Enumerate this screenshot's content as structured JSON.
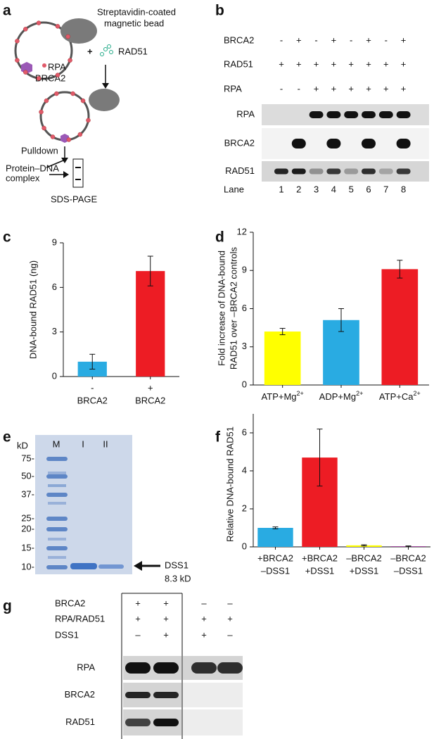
{
  "panel_labels": [
    "a",
    "b",
    "c",
    "d",
    "e",
    "f",
    "g"
  ],
  "schematic": {
    "bead_label": [
      "Streptavidin-coated",
      "magnetic bead"
    ],
    "plus": "+",
    "rad51": "RAD51",
    "rpa": "RPA",
    "brca2": "BRCA2",
    "pulldown": "Pulldown",
    "complex": [
      "Protein–DNA",
      "complex"
    ],
    "gel": "SDS-PAGE"
  },
  "blot_b": {
    "conditions": [
      {
        "name": "BRCA2",
        "signs": [
          "-",
          "+",
          "-",
          "+",
          "-",
          "+",
          "-",
          "+"
        ]
      },
      {
        "name": "RAD51",
        "signs": [
          "+",
          "+",
          "+",
          "+",
          "+",
          "+",
          "+",
          "+"
        ]
      },
      {
        "name": "RPA",
        "signs": [
          "-",
          "-",
          "+",
          "+",
          "+",
          "+",
          "+",
          "+"
        ]
      }
    ],
    "rows": [
      "RPA",
      "BRCA2",
      "RAD51"
    ],
    "lane_title": "Lane",
    "lanes": [
      1,
      2,
      3,
      4,
      5,
      6,
      7,
      8
    ]
  },
  "chart_data": [
    {
      "type": "bar",
      "y_label": "DNA-bound RAD51 (ng)",
      "categories": [
        [
          "-",
          "BRCA2"
        ],
        [
          "+",
          "BRCA2"
        ]
      ],
      "values": [
        1.0,
        7.1
      ],
      "errors": [
        0.5,
        1.0
      ],
      "colors": [
        "#29abe2",
        "#ed1c24"
      ],
      "ylim": [
        0,
        9
      ],
      "yticks": [
        0,
        3,
        6,
        9
      ]
    },
    {
      "type": "bar",
      "y_label": [
        "Fold increase of DNA-bound",
        "RAD51 over –BRCA2 controls"
      ],
      "categories": [
        "ATP+Mg",
        "ADP+Mg",
        "ATP+Ca"
      ],
      "category_superscripts": [
        "2+",
        "2+",
        "2+"
      ],
      "values": [
        4.2,
        5.1,
        9.1
      ],
      "errors": [
        0.25,
        0.9,
        0.7
      ],
      "colors": [
        "#ffff00",
        "#29abe2",
        "#ed1c24"
      ],
      "ylim": [
        0,
        12
      ],
      "yticks": [
        0,
        3,
        6,
        9,
        12
      ]
    },
    {
      "type": "bar",
      "y_label": "Relative DNA-bound RAD51",
      "categories": [
        [
          "+BRCA2",
          "–DSS1"
        ],
        [
          "+BRCA2",
          "+DSS1"
        ],
        [
          "–BRCA2",
          "+DSS1"
        ],
        [
          "–BRCA2",
          "–DSS1"
        ]
      ],
      "values": [
        1.0,
        4.7,
        0.08,
        0.03
      ],
      "errors": [
        0.05,
        1.5,
        0.03,
        0.02
      ],
      "colors": [
        "#29abe2",
        "#ed1c24",
        "#ffff00",
        "#93278f"
      ],
      "ylim": [
        0,
        7
      ],
      "yticks": [
        0,
        2,
        4,
        6
      ]
    }
  ],
  "gel_e": {
    "unit": "kD",
    "lanes": [
      "M",
      "I",
      "II"
    ],
    "markers": [
      "75-",
      "50-",
      "37-",
      "25-",
      "20-",
      "15-",
      "10-"
    ],
    "arrow_label": "DSS1",
    "size_label": "8.3 kD"
  },
  "blot_g": {
    "conditions": [
      {
        "name": "BRCA2",
        "signs": [
          "+",
          "+",
          "–",
          "–"
        ]
      },
      {
        "name": "RPA/RAD51",
        "signs": [
          "+",
          "+",
          "+",
          "+"
        ]
      },
      {
        "name": "DSS1",
        "signs": [
          "–",
          "+",
          "+",
          "–"
        ]
      }
    ],
    "rows": [
      "RPA",
      "BRCA2",
      "RAD51"
    ]
  }
}
